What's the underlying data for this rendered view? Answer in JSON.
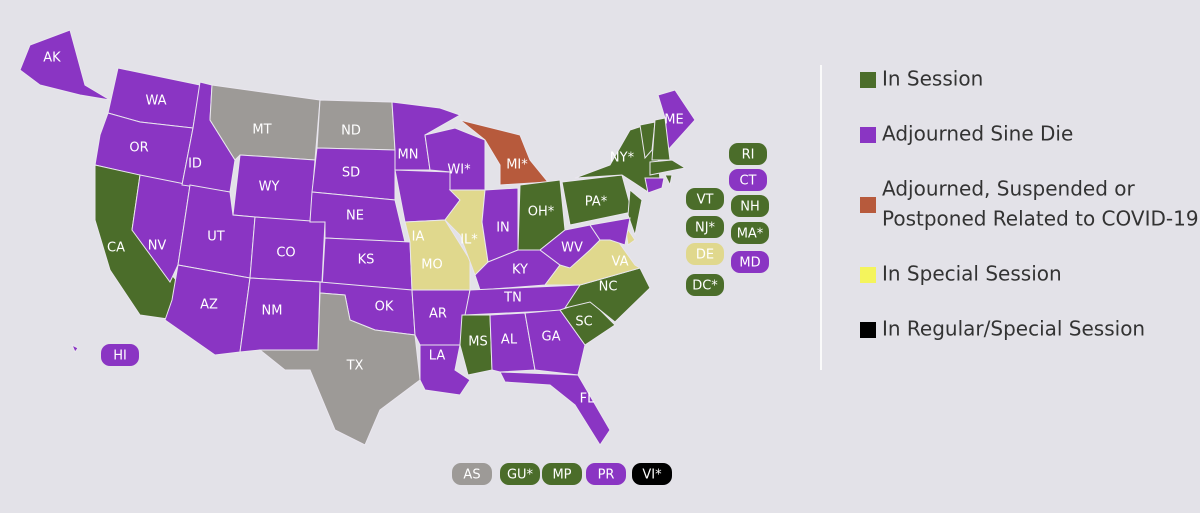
{
  "map": {
    "states": [
      {
        "label": "AK",
        "color": "#8a35c3"
      },
      {
        "label": "WA",
        "color": "#8a35c3"
      },
      {
        "label": "OR",
        "color": "#8a35c3"
      },
      {
        "label": "CA",
        "color": "#4b6d2a"
      },
      {
        "label": "NV",
        "color": "#8a35c3"
      },
      {
        "label": "ID",
        "color": "#8a35c3"
      },
      {
        "label": "MT",
        "color": "#9d9a97"
      },
      {
        "label": "WY",
        "color": "#8a35c3"
      },
      {
        "label": "UT",
        "color": "#8a35c3"
      },
      {
        "label": "CO",
        "color": "#8a35c3"
      },
      {
        "label": "AZ",
        "color": "#8a35c3"
      },
      {
        "label": "NM",
        "color": "#8a35c3"
      },
      {
        "label": "ND",
        "color": "#9d9a97"
      },
      {
        "label": "SD",
        "color": "#8a35c3"
      },
      {
        "label": "NE",
        "color": "#8a35c3"
      },
      {
        "label": "KS",
        "color": "#8a35c3"
      },
      {
        "label": "OK",
        "color": "#8a35c3"
      },
      {
        "label": "TX",
        "color": "#9d9a97"
      },
      {
        "label": "MN",
        "color": "#8a35c3"
      },
      {
        "label": "IA",
        "color": "#8a35c3"
      },
      {
        "label": "MO",
        "color": "#e0d88d"
      },
      {
        "label": "AR",
        "color": "#8a35c3"
      },
      {
        "label": "LA",
        "color": "#8a35c3"
      },
      {
        "label": "WI*",
        "color": "#8a35c3"
      },
      {
        "label": "IL*",
        "color": "#e0d88d"
      },
      {
        "label": "MI*",
        "color": "#b75a3c"
      },
      {
        "label": "IN",
        "color": "#8a35c3"
      },
      {
        "label": "OH*",
        "color": "#4b6d2a"
      },
      {
        "label": "KY",
        "color": "#8a35c3"
      },
      {
        "label": "TN",
        "color": "#8a35c3"
      },
      {
        "label": "MS",
        "color": "#4b6d2a"
      },
      {
        "label": "AL",
        "color": "#8a35c3"
      },
      {
        "label": "GA",
        "color": "#8a35c3"
      },
      {
        "label": "FL",
        "color": "#8a35c3"
      },
      {
        "label": "SC",
        "color": "#4b6d2a"
      },
      {
        "label": "NC",
        "color": "#4b6d2a"
      },
      {
        "label": "VA",
        "color": "#e0d88d"
      },
      {
        "label": "WV",
        "color": "#8a35c3"
      },
      {
        "label": "PA*",
        "color": "#4b6d2a"
      },
      {
        "label": "NY*",
        "color": "#4b6d2a"
      },
      {
        "label": "ME",
        "color": "#8a35c3"
      }
    ],
    "badges": [
      {
        "label": "RI",
        "color": "#4b6d2a"
      },
      {
        "label": "CT",
        "color": "#8a35c3"
      },
      {
        "label": "VT",
        "color": "#4b6d2a"
      },
      {
        "label": "NH",
        "color": "#4b6d2a"
      },
      {
        "label": "NJ*",
        "color": "#4b6d2a"
      },
      {
        "label": "MA*",
        "color": "#4b6d2a"
      },
      {
        "label": "DE",
        "color": "#e0d88d"
      },
      {
        "label": "MD",
        "color": "#8a35c3"
      },
      {
        "label": "DC*",
        "color": "#4b6d2a"
      },
      {
        "label": "HI",
        "color": "#8a35c3"
      }
    ],
    "territories": [
      {
        "label": "AS",
        "color": "#9d9a97"
      },
      {
        "label": "GU*",
        "color": "#4b6d2a"
      },
      {
        "label": "MP",
        "color": "#4b6d2a"
      },
      {
        "label": "PR",
        "color": "#8a35c3"
      },
      {
        "label": "VI*",
        "color": "#000000"
      }
    ],
    "legend": [
      {
        "label": [
          "In Session"
        ],
        "color": "#4b6d2a"
      },
      {
        "label": [
          "Adjourned Sine Die"
        ],
        "color": "#8a35c3"
      },
      {
        "label": [
          "Adjourned, Suspended or",
          "Postponed Related to COVID-19"
        ],
        "color": "#b75a3c"
      },
      {
        "label": [
          "In Special Session"
        ],
        "color": "#f4f45c"
      },
      {
        "label": [
          "In Regular/Special Session"
        ],
        "color": "#000000"
      }
    ]
  }
}
